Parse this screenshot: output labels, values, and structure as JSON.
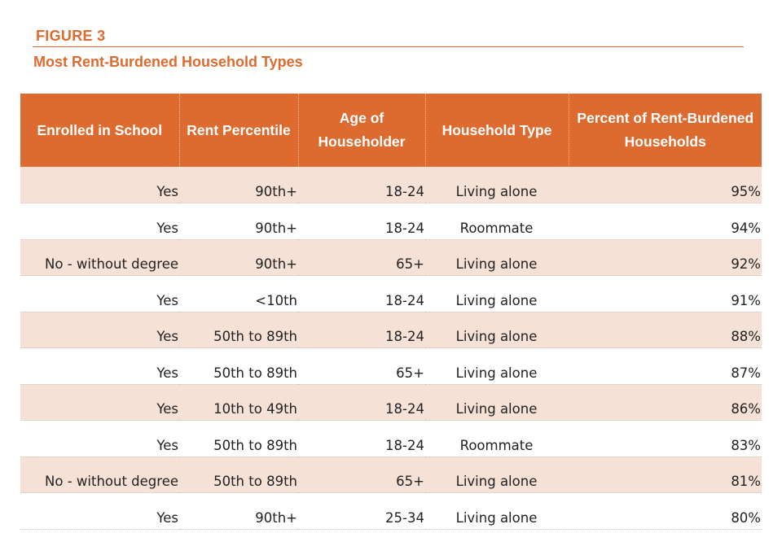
{
  "colors": {
    "accent": "#DD6A2E",
    "header_bg": "#DD6A2E",
    "stripe": "#F6E1D7",
    "white": "#FFFFFF"
  },
  "figure": {
    "label": "FIGURE 3",
    "title": "Most Rent-Burdened Household Types"
  },
  "chart_data": {
    "type": "table",
    "title": "Most Rent-Burdened Household Types",
    "columns": [
      "Enrolled in School",
      "Rent Percentile",
      "Age of Householder",
      "Household Type",
      "Percent of Rent-Burdened Households"
    ],
    "rows": [
      [
        "Yes",
        "90th+",
        "18-24",
        "Living alone",
        "95%"
      ],
      [
        "Yes",
        "90th+",
        "18-24",
        "Roommate",
        "94%"
      ],
      [
        "No - without degree",
        "90th+",
        "65+",
        "Living alone",
        "92%"
      ],
      [
        "Yes",
        "<10th",
        "18-24",
        "Living alone",
        "91%"
      ],
      [
        "Yes",
        "50th to 89th",
        "18-24",
        "Living alone",
        "88%"
      ],
      [
        "Yes",
        "50th to 89th",
        "65+",
        "Living alone",
        "87%"
      ],
      [
        "Yes",
        "10th to 49th",
        "18-24",
        "Living alone",
        "86%"
      ],
      [
        "Yes",
        "50th to 89th",
        "18-24",
        "Roommate",
        "83%"
      ],
      [
        "No - without degree",
        "50th to 89th",
        "65+",
        "Living alone",
        "81%"
      ],
      [
        "Yes",
        "90th+",
        "25-34",
        "Living alone",
        "80%"
      ]
    ]
  }
}
